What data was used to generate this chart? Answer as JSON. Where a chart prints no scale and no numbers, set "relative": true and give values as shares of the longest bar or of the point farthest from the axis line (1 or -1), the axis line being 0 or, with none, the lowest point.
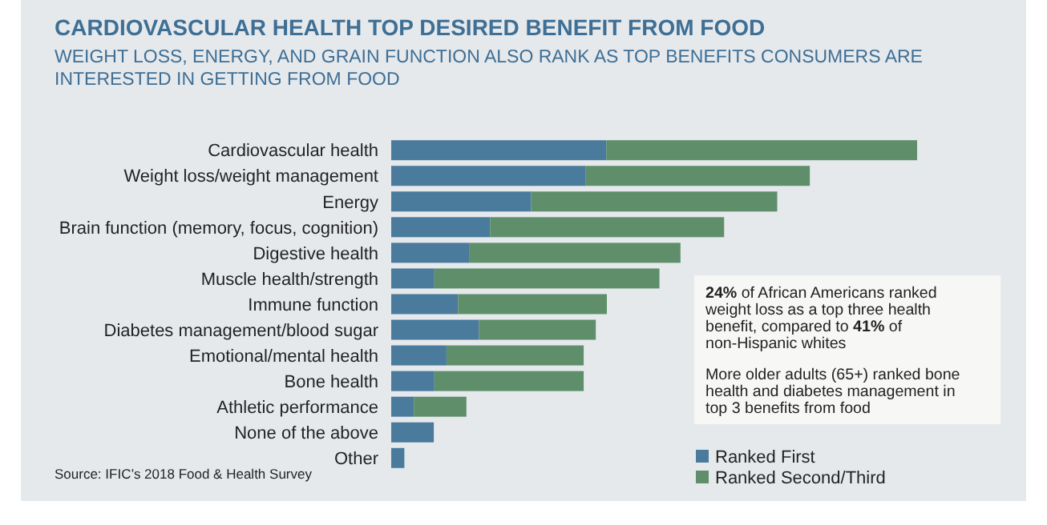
{
  "chart_data": {
    "type": "bar",
    "orientation": "horizontal",
    "stacked": true,
    "relative": true,
    "title": "CARDIOVASCULAR HEALTH TOP DESIRED BENEFIT FROM FOOD",
    "subtitle": "WEIGHT LOSS, ENERGY, AND GRAIN FUNCTION ALSO RANK AS TOP BENEFITS CONSUMERS ARE INTERESTED IN GETTING FROM FOOD",
    "categories": [
      "Cardiovascular health",
      "Weight loss/weight management",
      "Energy",
      "Brain function (memory, focus, cognition)",
      "Digestive health",
      "Muscle health/strength",
      "Immune function",
      "Diabetes management/blood sugar",
      "Emotional/mental health",
      "Bone health",
      "Athletic performance",
      "None of the above",
      "Other"
    ],
    "series": [
      {
        "name": "Ranked First",
        "color": "#4a7a9c",
        "values": [
          0.409,
          0.37,
          0.266,
          0.188,
          0.148,
          0.082,
          0.127,
          0.167,
          0.105,
          0.082,
          0.043,
          0.081,
          0.025
        ]
      },
      {
        "name": "Ranked Second/Third",
        "color": "#5e8f6a",
        "values": [
          0.591,
          0.426,
          0.468,
          0.445,
          0.402,
          0.428,
          0.283,
          0.222,
          0.261,
          0.284,
          0.1,
          null,
          null
        ]
      }
    ],
    "legend": "bottom right",
    "annotations": [
      "24% of African Americans ranked weight loss as a top three health benefit, compared to 41% of non-Hispanic whites",
      "More older adults (65+) ranked bone health and diabetes management in top 3 benefits from food",
      "Source: IFIC’s 2018 Food & Health Survey"
    ]
  }
}
